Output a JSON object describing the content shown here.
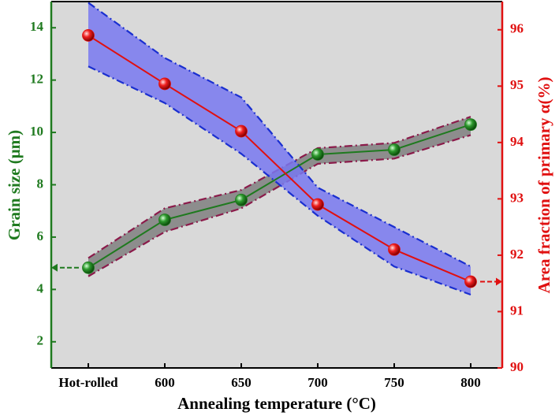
{
  "chart_data": {
    "type": "line",
    "categories": [
      "Hot-rolled",
      "600",
      "650",
      "700",
      "750",
      "800"
    ],
    "x_label": "Annealing temperature (°C)",
    "y_label": "Grain size (μm)",
    "y2_label": "Area fraction of primary α(%)",
    "ylim": [
      1,
      15
    ],
    "yticks": [
      2,
      4,
      6,
      8,
      10,
      12,
      14
    ],
    "y2lim": [
      90,
      96.5
    ],
    "y2ticks": [
      90,
      91,
      92,
      93,
      94,
      95,
      96
    ],
    "series": [
      {
        "color": "#1f7a1f",
        "band_color": "#7f7f7f",
        "band_edge_color": "#8b1a4a",
        "values": [
          4.83,
          6.66,
          7.42,
          9.16,
          9.34,
          10.3
        ],
        "upper": [
          5.2,
          7.1,
          7.8,
          9.4,
          9.6,
          10.6
        ],
        "lower": [
          4.5,
          6.2,
          7.1,
          8.8,
          9.0,
          9.9
        ]
      },
      {
        "axis": "y2",
        "color": "#e01010",
        "band_color": "#7878f0",
        "band_edge_color": "#1a2fd0",
        "values": [
          95.9,
          95.04,
          94.2,
          92.9,
          92.1,
          91.53
        ],
        "upper": [
          96.48,
          95.5,
          94.8,
          93.2,
          92.5,
          91.8
        ],
        "lower": [
          95.35,
          94.7,
          93.8,
          92.7,
          91.8,
          91.3
        ]
      }
    ]
  }
}
